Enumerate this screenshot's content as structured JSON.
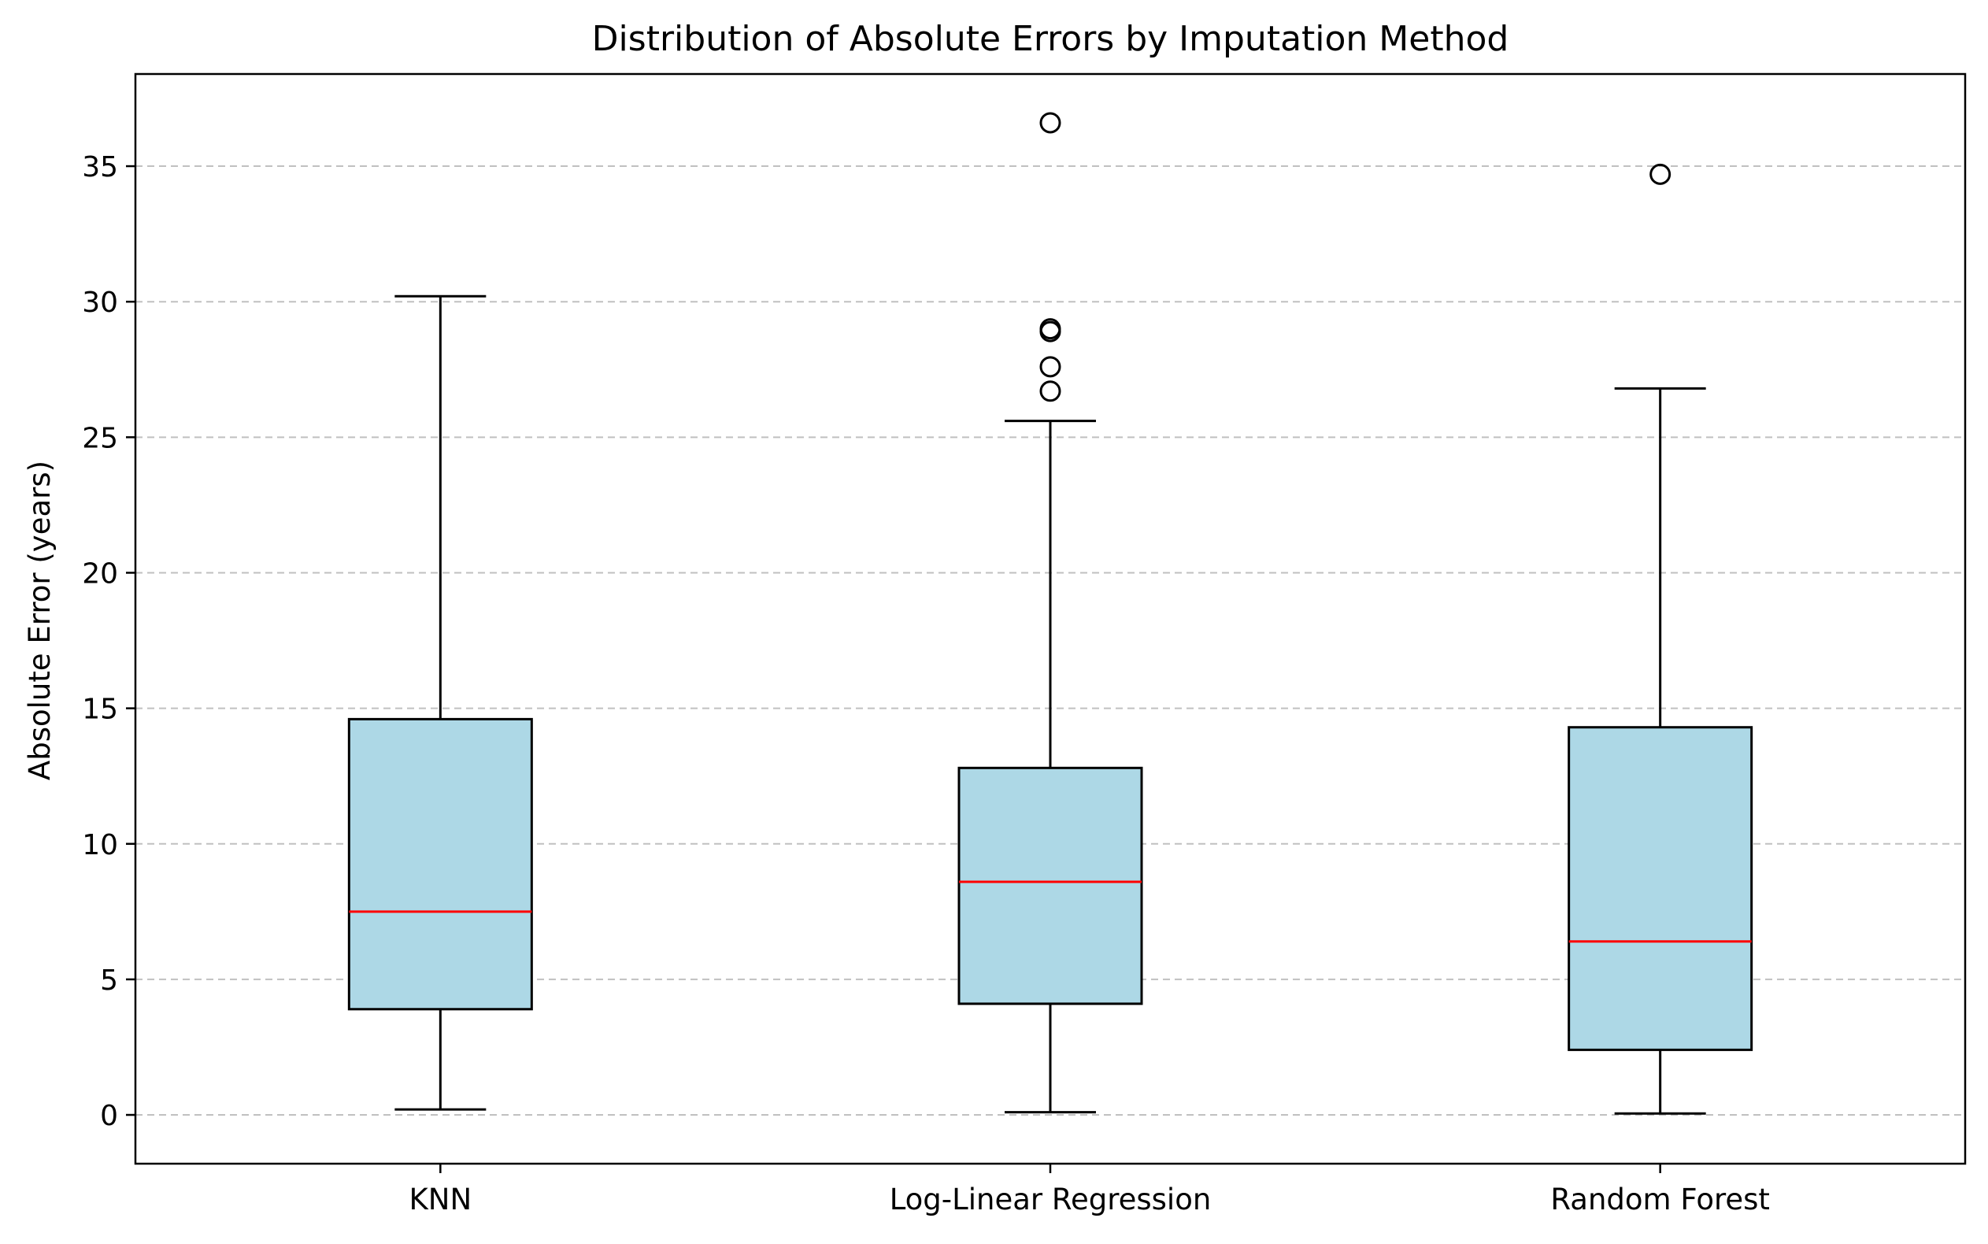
{
  "chart_data": {
    "type": "box",
    "title": "Distribution of Absolute Errors by Imputation Method",
    "xlabel": "",
    "ylabel": "Absolute Error (years)",
    "ylim": [
      -1.8,
      38.4
    ],
    "yticks": [
      0,
      5,
      10,
      15,
      20,
      25,
      30,
      35
    ],
    "grid": {
      "axis": "y",
      "style": "dashed"
    },
    "categories": [
      "KNN",
      "Log-Linear Regression",
      "Random Forest"
    ],
    "boxes": [
      {
        "category": "KNN",
        "whisker_low": 0.2,
        "q1": 3.9,
        "median": 7.5,
        "q3": 14.6,
        "whisker_high": 30.2,
        "outliers": []
      },
      {
        "category": "Log-Linear Regression",
        "whisker_low": 0.1,
        "q1": 4.1,
        "median": 8.6,
        "q3": 12.8,
        "whisker_high": 25.6,
        "outliers": [
          26.7,
          27.6,
          28.9,
          29.0,
          36.6
        ]
      },
      {
        "category": "Random Forest",
        "whisker_low": 0.05,
        "q1": 2.4,
        "median": 6.4,
        "q3": 14.3,
        "whisker_high": 26.8,
        "outliers": [
          34.7
        ]
      }
    ],
    "colors": {
      "box_fill": "#add8e6",
      "median": "#ff0000",
      "edge": "#000000",
      "grid": "#c0c0c0"
    }
  }
}
